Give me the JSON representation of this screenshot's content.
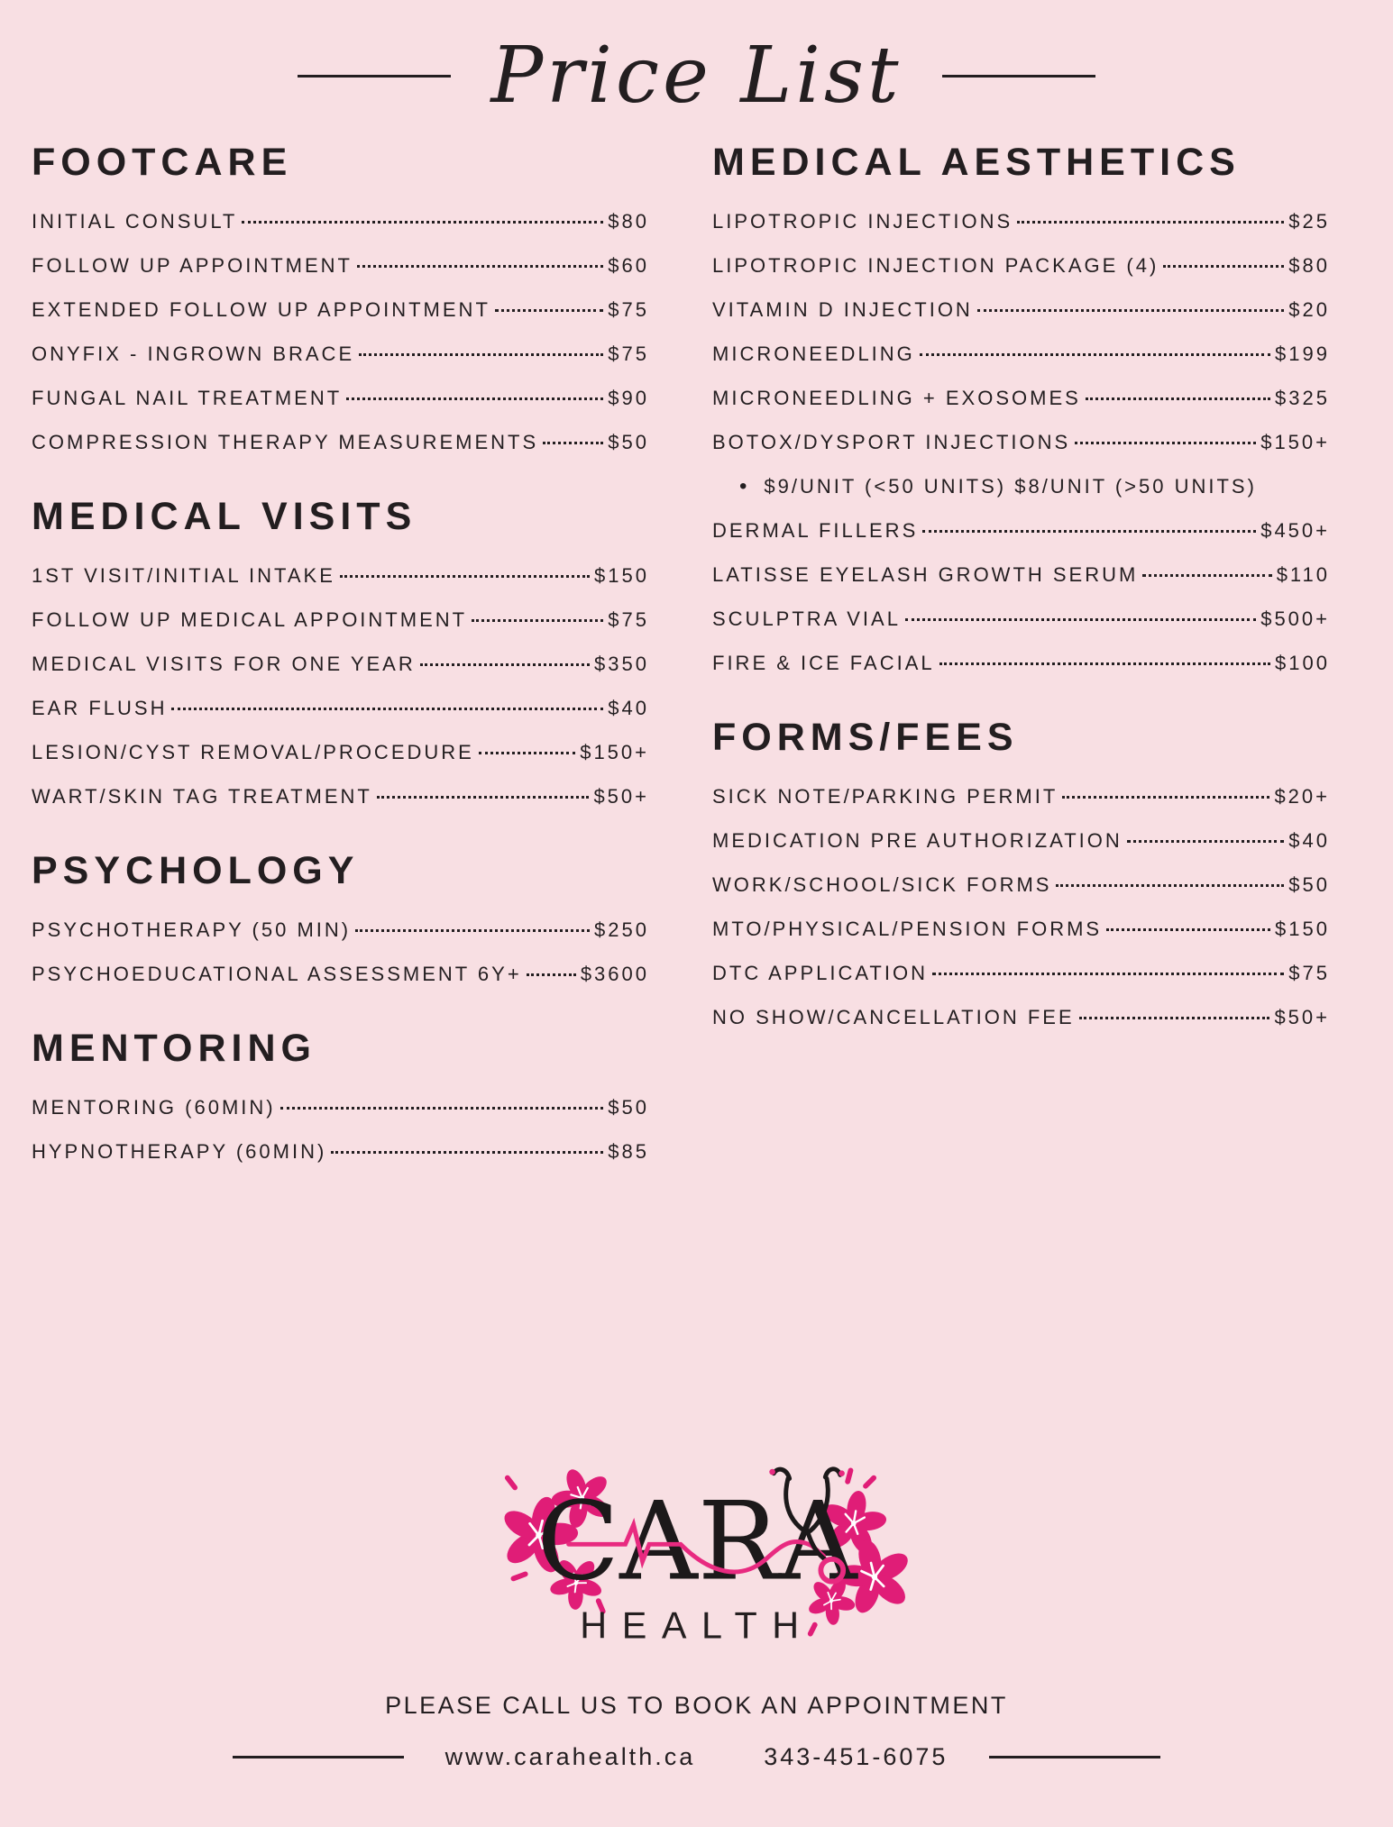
{
  "page": {
    "background": "#f8dfe3",
    "text_color": "#231e20",
    "accent_pink": "#e01d77"
  },
  "header": {
    "title": "Price List"
  },
  "columns": {
    "left": {
      "sections": [
        {
          "heading": "FOOTCARE",
          "items": [
            {
              "label": "INITIAL CONSULT",
              "price": "$80"
            },
            {
              "label": "FOLLOW UP APPOINTMENT",
              "price": "$60"
            },
            {
              "label": "EXTENDED FOLLOW UP APPOINTMENT",
              "price": "$75"
            },
            {
              "label": "ONYFIX - INGROWN BRACE",
              "price": "$75"
            },
            {
              "label": "FUNGAL NAIL TREATMENT",
              "price": "$90"
            },
            {
              "label": "COMPRESSION THERAPY MEASUREMENTS",
              "price": "$50"
            }
          ]
        },
        {
          "heading": "MEDICAL VISITS",
          "items": [
            {
              "label": "1ST VISIT/INITIAL INTAKE",
              "price": "$150"
            },
            {
              "label": "FOLLOW UP MEDICAL APPOINTMENT",
              "price": "$75"
            },
            {
              "label": "MEDICAL VISITS FOR ONE YEAR",
              "price": "$350"
            },
            {
              "label": "EAR FLUSH",
              "price": "$40"
            },
            {
              "label": "LESION/CYST REMOVAL/PROCEDURE",
              "price": "$150+"
            },
            {
              "label": "WART/SKIN TAG TREATMENT",
              "price": "$50+"
            }
          ]
        },
        {
          "heading": "PSYCHOLOGY",
          "items": [
            {
              "label": "PSYCHOTHERAPY (50 MIN)",
              "price": "$250"
            },
            {
              "label": "PSYCHOEDUCATIONAL ASSESSMENT 6Y+",
              "price": "$3600"
            }
          ]
        },
        {
          "heading": "MENTORING",
          "items": [
            {
              "label": "MENTORING (60MIN)",
              "price": "$50"
            },
            {
              "label": "HYPNOTHERAPY (60MIN)",
              "price": "$85"
            }
          ]
        }
      ]
    },
    "right": {
      "sections": [
        {
          "heading": "MEDICAL AESTHETICS",
          "items": [
            {
              "label": "LIPOTROPIC INJECTIONS",
              "price": "$25"
            },
            {
              "label": "LIPOTROPIC INJECTION PACKAGE (4)",
              "price": "$80"
            },
            {
              "label": "VITAMIN D INJECTION",
              "price": "$20"
            },
            {
              "label": "MICRONEEDLING",
              "price": "$199"
            },
            {
              "label": "MICRONEEDLING + EXOSOMES",
              "price": "$325"
            },
            {
              "label": "BOTOX/DYSPORT INJECTIONS",
              "price": "$150+"
            },
            {
              "note": "$9/UNIT (<50 UNITS) $8/UNIT (>50 UNITS)"
            },
            {
              "label": "DERMAL FILLERS",
              "price": "$450+"
            },
            {
              "label": "LATISSE EYELASH GROWTH SERUM",
              "price": "$110"
            },
            {
              "label": "SCULPTRA VIAL",
              "price": "$500+"
            },
            {
              "label": "FIRE & ICE FACIAL",
              "price": "$100"
            }
          ]
        },
        {
          "heading": "FORMS/FEES",
          "items": [
            {
              "label": "SICK NOTE/PARKING PERMIT",
              "price": "$20+"
            },
            {
              "label": "MEDICATION PRE AUTHORIZATION",
              "price": "$40"
            },
            {
              "label": "WORK/SCHOOL/SICK FORMS",
              "price": "$50"
            },
            {
              "label": "MTO/PHYSICAL/PENSION FORMS",
              "price": "$150"
            },
            {
              "label": "DTC APPLICATION",
              "price": "$75"
            },
            {
              "label": "NO SHOW/CANCELLATION FEE",
              "price": "$50+"
            }
          ]
        }
      ]
    }
  },
  "logo": {
    "brand": "CARA",
    "sub": "HEALTH"
  },
  "footer": {
    "cta": "PLEASE CALL US TO BOOK AN APPOINTMENT",
    "website": "www.carahealth.ca",
    "phone": "343-451-6075"
  }
}
